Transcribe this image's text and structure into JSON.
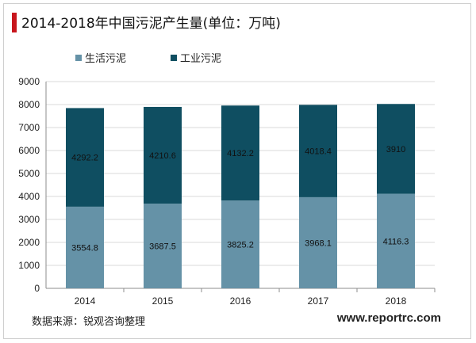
{
  "page": {
    "title": "2014-2018年中国污泥产生量(单位：万吨)",
    "source": "数据来源：锐观咨询整理",
    "site": "www.reportrc.com"
  },
  "colors": {
    "series_1": "#6592a7",
    "series_2": "#0f4e61",
    "accent": "#c8161d",
    "grid": "#d9d9d9",
    "axis": "#8c8c8c"
  },
  "chart_data": {
    "type": "bar",
    "stacked": true,
    "categories": [
      "2014",
      "2015",
      "2016",
      "2017",
      "2018"
    ],
    "series": [
      {
        "name": "生活污泥",
        "values": [
          3554.8,
          3687.5,
          3825.2,
          3968.1,
          4116.3
        ],
        "labels": [
          "3554.8",
          "3687.5",
          "3825.2",
          "3968.1",
          "4116.3"
        ]
      },
      {
        "name": "工业污泥",
        "values": [
          4292.2,
          4210.6,
          4132.2,
          4018.4,
          3910
        ],
        "labels": [
          "4292.2",
          "4210.6",
          "4132.2",
          "4018.4",
          "3910"
        ]
      }
    ],
    "ylim": [
      0,
      9000
    ],
    "yticks": [
      "0",
      "1000",
      "2000",
      "3000",
      "4000",
      "5000",
      "6000",
      "7000",
      "8000",
      "9000"
    ],
    "grid": true,
    "legend_position": "top-left"
  }
}
